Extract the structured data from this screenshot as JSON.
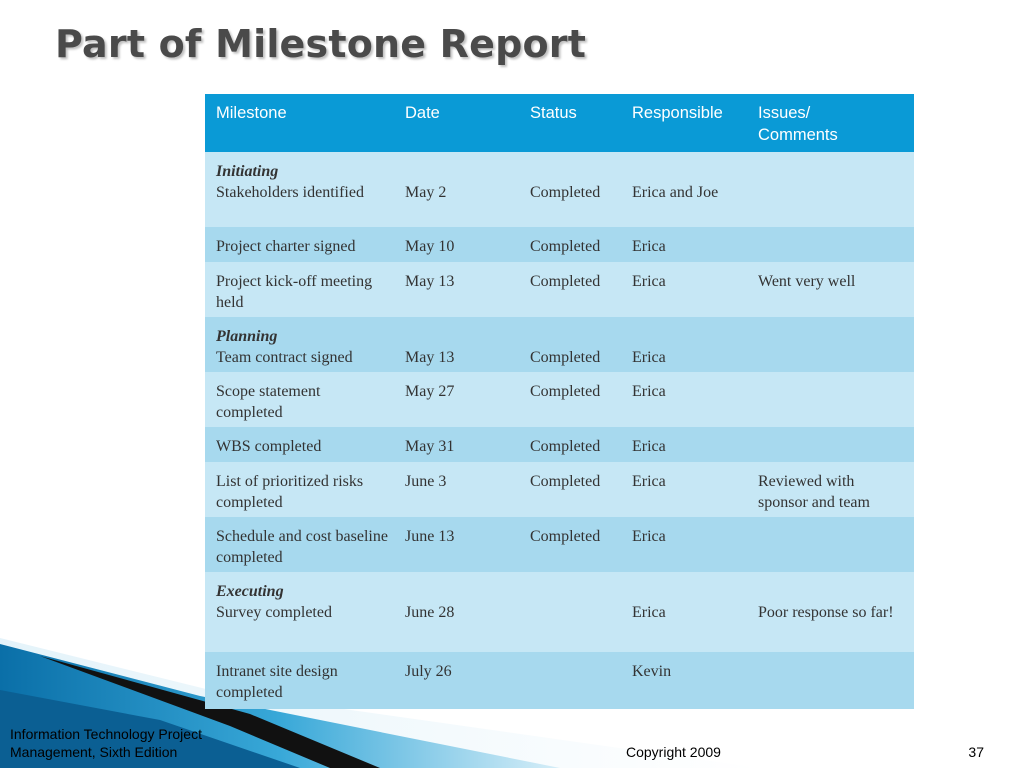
{
  "slide": {
    "title": "Part of Milestone Report",
    "footer_left": "Information Technology Project Management, Sixth Edition",
    "footer_center": "Copyright 2009",
    "page_number": "37"
  },
  "colors": {
    "header_blue": "#0a9ad6",
    "row_light": "#c6e7f5",
    "row_dark": "#a7d9ee",
    "title_gray": "#4a4a4a"
  },
  "table": {
    "headers": [
      "Milestone",
      "Date",
      "Status",
      "Responsible",
      "Issues/ Comments"
    ],
    "rows": [
      {
        "phase": "Initiating",
        "milestone": "Stakeholders identified",
        "date": "May 2",
        "status": "Completed",
        "responsible": "Erica and Joe",
        "comments": ""
      },
      {
        "phase": "",
        "milestone": "Project charter signed",
        "date": "May 10",
        "status": "Completed",
        "responsible": "Erica",
        "comments": ""
      },
      {
        "phase": "",
        "milestone": "Project kick-off meeting held",
        "date": "May 13",
        "status": "Completed",
        "responsible": "Erica",
        "comments": "Went very well"
      },
      {
        "phase": "Planning",
        "milestone": "Team contract signed",
        "date": "May 13",
        "status": "Completed",
        "responsible": "Erica",
        "comments": ""
      },
      {
        "phase": "",
        "milestone": "Scope statement completed",
        "date": "May 27",
        "status": "Completed",
        "responsible": "Erica",
        "comments": ""
      },
      {
        "phase": "",
        "milestone": "WBS completed",
        "date": "May 31",
        "status": "Completed",
        "responsible": "Erica",
        "comments": ""
      },
      {
        "phase": "",
        "milestone": "List of prioritized risks completed",
        "date": "June 3",
        "status": "Completed",
        "responsible": "Erica",
        "comments": "Reviewed with sponsor and team"
      },
      {
        "phase": "",
        "milestone": "Schedule and cost baseline completed",
        "date": "June 13",
        "status": "Completed",
        "responsible": "Erica",
        "comments": ""
      },
      {
        "phase": "Executing",
        "milestone": "Survey completed",
        "date": "June 28",
        "status": "",
        "responsible": "Erica",
        "comments": "Poor response so far!"
      },
      {
        "phase": "",
        "milestone": "Intranet site design completed",
        "date": "July 26",
        "status": "",
        "responsible": "Kevin",
        "comments": ""
      }
    ]
  }
}
